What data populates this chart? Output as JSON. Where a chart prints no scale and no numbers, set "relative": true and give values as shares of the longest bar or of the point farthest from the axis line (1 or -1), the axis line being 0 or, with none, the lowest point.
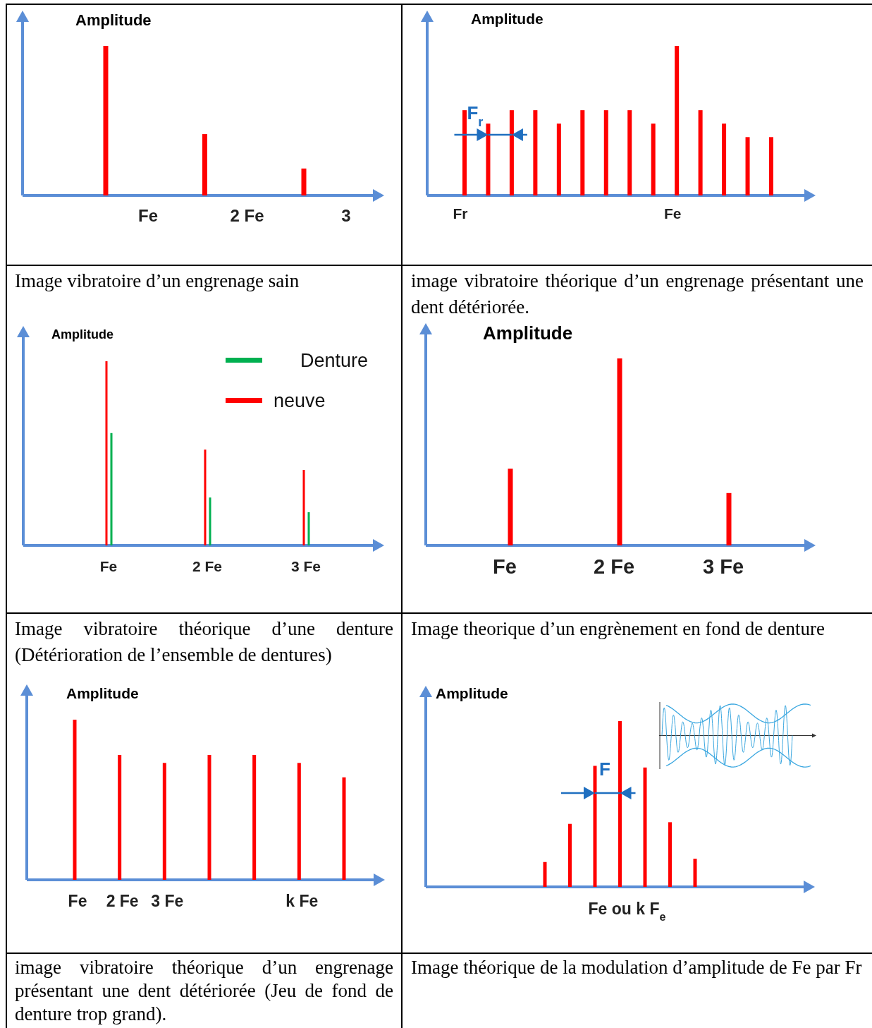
{
  "chart_data": [
    {
      "type": "bar",
      "title": "Image vibratoire d’un engrenage sain",
      "ylabel": "Amplitude",
      "categories": [
        "Fe",
        "2 Fe",
        "3"
      ],
      "values": [
        1,
        0.41,
        0.18
      ],
      "color": "#ff0000",
      "relative": true
    },
    {
      "type": "bar",
      "title": "image vibratoire théorique d’un engrenage présentant une dent détériorée.",
      "ylabel": "Amplitude",
      "categories": [
        "Fr",
        null,
        null,
        null,
        null,
        null,
        null,
        null,
        null,
        "Fe",
        null,
        null,
        null,
        null
      ],
      "values": [
        0.57,
        0.48,
        0.57,
        0.57,
        0.48,
        0.57,
        0.57,
        0.57,
        0.48,
        1,
        0.57,
        0.48,
        0.39,
        0.39
      ],
      "color": "#ff0000",
      "relative": true,
      "annotations": [
        "F$_{r}$"
      ]
    },
    {
      "type": "bar",
      "title": "Image vibratoire théorique d’une denture (Détérioration de l’ensemble de dentures)",
      "ylabel": "Amplitude",
      "categories": [
        "Fe",
        "2 Fe",
        "3 Fe"
      ],
      "relative": true,
      "legend": "top right",
      "series": [
        {
          "name": "Denture",
          "color": "#00b050",
          "values": [
            0.61,
            0.26,
            0.18
          ]
        },
        {
          "name": "neuve",
          "color": "#ff0000",
          "values": [
            1,
            0.52,
            0.41
          ]
        }
      ]
    },
    {
      "type": "bar",
      "title": "Image theorique d’un engrènement en fond de denture",
      "ylabel": "Amplitude",
      "categories": [
        "Fe",
        "2 Fe",
        "3 Fe"
      ],
      "values": [
        0.41,
        1,
        0.28
      ],
      "color": "#ff0000",
      "relative": true
    },
    {
      "type": "bar",
      "title": "image vibratoire théorique d’un engrenage présentant une dent détériorée (Jeu de fond de denture trop grand).",
      "ylabel": "Amplitude",
      "categories": [
        "Fe",
        "2 Fe",
        "3 Fe",
        null,
        null,
        "k Fe",
        null
      ],
      "values": [
        1,
        0.78,
        0.73,
        0.78,
        0.78,
        0.73,
        0.64
      ],
      "color": "#ff0000",
      "relative": true
    },
    {
      "type": "bar",
      "title": "Image théorique de la modulation d’amplitude de Fe par Fr",
      "ylabel": "Amplitude",
      "categories": [
        null,
        null,
        null,
        "Fe  ou k F$_{e}$",
        null,
        null,
        null
      ],
      "values": [
        0.15,
        0.38,
        0.73,
        1,
        0.72,
        0.39,
        0.17
      ],
      "color": "#ff0000",
      "relative": true,
      "annotations": [
        "F"
      ]
    }
  ]
}
